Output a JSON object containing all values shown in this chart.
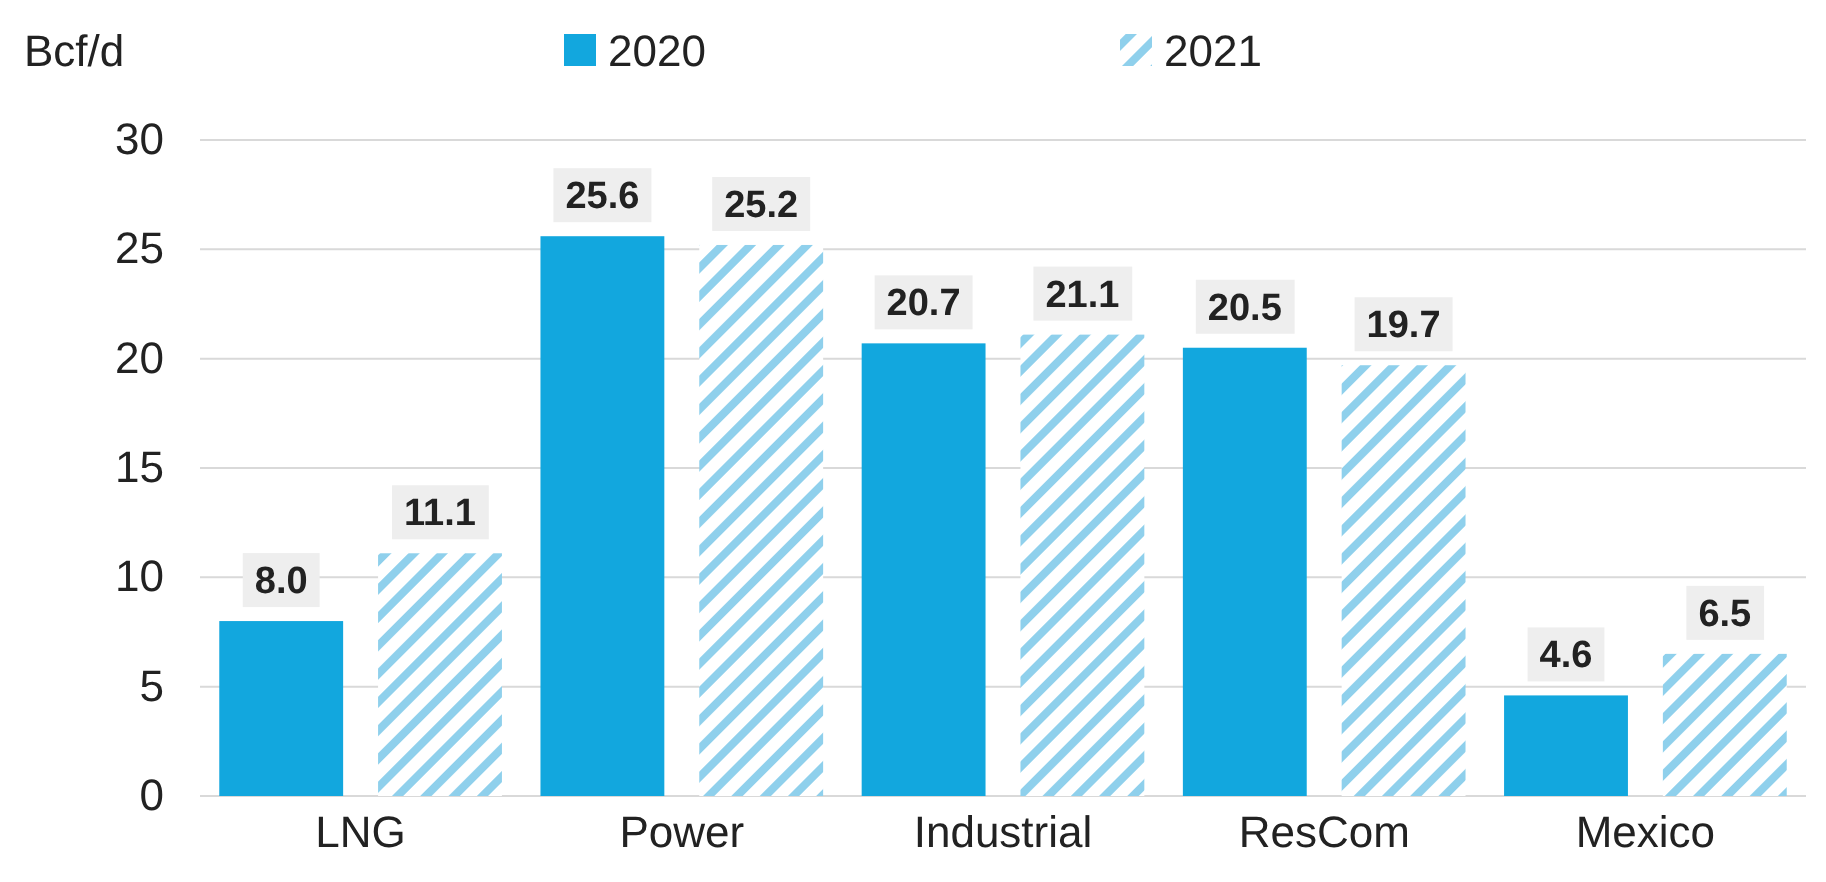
{
  "chart_data": {
    "type": "bar",
    "ylabel": "Bcf/d",
    "categories": [
      "LNG",
      "Power",
      "Industrial",
      "ResCom",
      "Mexico"
    ],
    "series": [
      {
        "name": "2020",
        "color": "#12a7de",
        "values": [
          8,
          25.6,
          20.7,
          20.5,
          4.6
        ],
        "value_labels": [
          "8.0",
          "25.6",
          "20.7",
          "20.5",
          "4.6"
        ]
      },
      {
        "name": "2021",
        "color": "#8fd0ec",
        "values": [
          11.1,
          25.2,
          21.1,
          19.7,
          6.5
        ],
        "value_labels": [
          "11.1",
          "25.2",
          "21.1",
          "19.7",
          "6.5"
        ]
      }
    ],
    "ylim": [
      0,
      30
    ],
    "yticks": [
      0,
      5,
      10,
      15,
      20,
      25,
      30
    ],
    "grid": "y",
    "legend": "top"
  }
}
